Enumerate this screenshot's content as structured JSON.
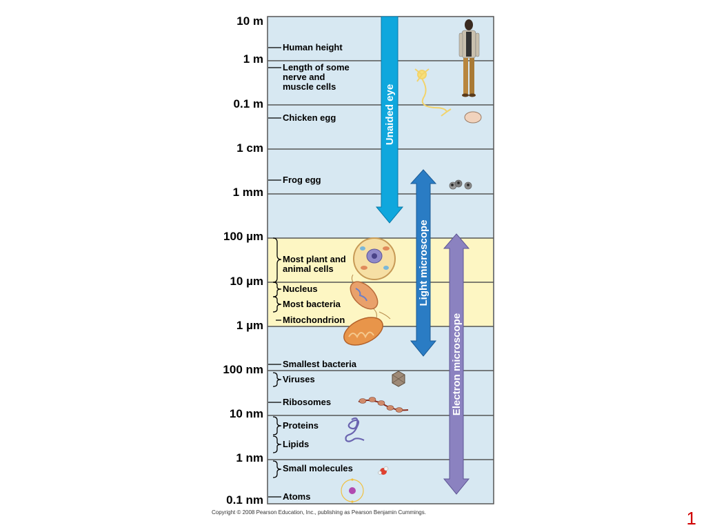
{
  "scale_labels": [
    "10 m",
    "1 m",
    "0.1 m",
    "1 cm",
    "1 mm",
    "100 µm",
    "10 µm",
    "1 µm",
    "100 nm",
    "10 nm",
    "1 nm",
    "0.1 nm"
  ],
  "items": {
    "human_height": "Human height",
    "nerve_cells": "Length of some\nnerve and\nmuscle cells",
    "chicken_egg": "Chicken egg",
    "frog_egg": "Frog egg",
    "plant_animal_cells": "Most plant and\nanimal cells",
    "nucleus": "Nucleus",
    "most_bacteria": "Most bacteria",
    "mitochondrion": "Mitochondrion",
    "smallest_bacteria": "Smallest bacteria",
    "viruses": "Viruses",
    "ribosomes": "Ribosomes",
    "proteins": "Proteins",
    "lipids": "Lipids",
    "small_molecules": "Small molecules",
    "atoms": "Atoms"
  },
  "ranges": {
    "unaided_eye": "Unaided eye",
    "light_microscope": "Light microscope",
    "electron_microscope": "Electron microscope"
  },
  "colors": {
    "panel": "#d7e8f2",
    "highlight": "#fdf6c3",
    "unaided_eye": "#0fa7dd",
    "light_microscope": "#2a7cc4",
    "electron_microscope": "#8b82c0",
    "page_number": "#d00000"
  },
  "icons": [
    "human-figure-icon",
    "nerve-cell-icon",
    "chicken-egg-icon",
    "frog-eggs-icon",
    "animal-cell-icon",
    "bacterium-icon",
    "mitochondrion-icon",
    "virus-icon",
    "ribosomes-icon",
    "protein-icon",
    "small-molecule-icon",
    "atom-icon"
  ],
  "copyright": "Copyright © 2008 Pearson Education, Inc., publishing as Pearson Benjamin Cummings.",
  "page_number": "1"
}
